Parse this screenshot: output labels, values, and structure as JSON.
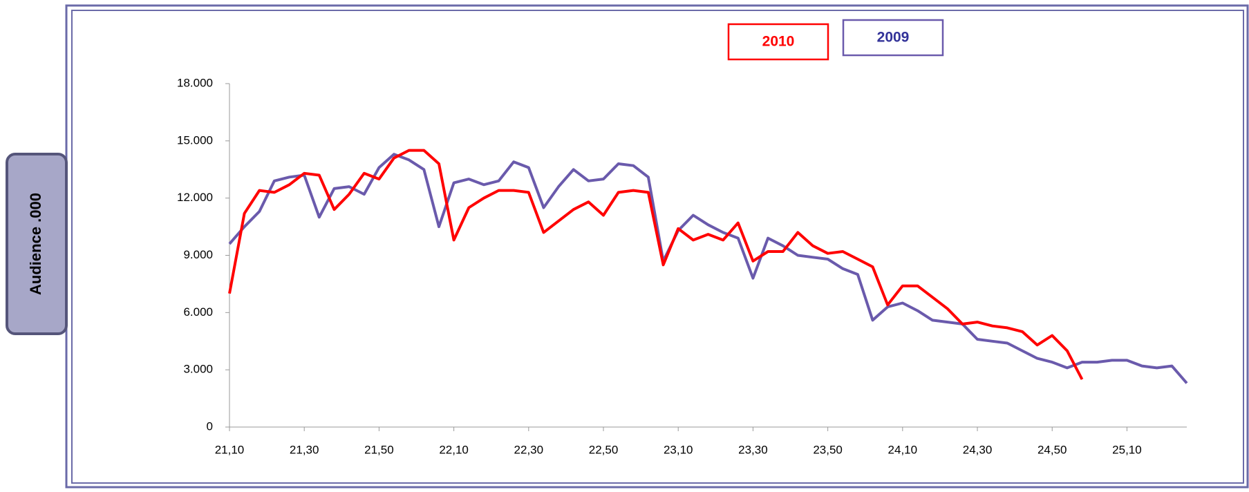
{
  "chart_data": {
    "type": "line",
    "y_label": "Audience .000",
    "x": [
      1270,
      1274,
      1278,
      1282,
      1286,
      1290,
      1294,
      1298,
      1302,
      1306,
      1310,
      1314,
      1318,
      1322,
      1326,
      1330,
      1334,
      1338,
      1342,
      1346,
      1350,
      1354,
      1358,
      1362,
      1366,
      1370,
      1374,
      1378,
      1382,
      1386,
      1390,
      1394,
      1398,
      1402,
      1406,
      1410,
      1414,
      1418,
      1422,
      1426,
      1430,
      1434,
      1438,
      1442,
      1446,
      1450,
      1454,
      1458,
      1462,
      1466,
      1470,
      1474,
      1478,
      1482,
      1486,
      1490,
      1494,
      1498,
      1502,
      1506,
      1510,
      1514,
      1518,
      1522,
      1526
    ],
    "series": [
      {
        "name": "2010",
        "color": "#ff0000",
        "values": [
          7000,
          11200,
          12400,
          12300,
          12700,
          13300,
          13200,
          11400,
          12200,
          13300,
          13000,
          14100,
          14500,
          14500,
          13800,
          9800,
          11500,
          12000,
          12400,
          12400,
          12300,
          10200,
          10800,
          11400,
          11800,
          11100,
          12300,
          12400,
          12300,
          8500,
          10400,
          9800,
          10100,
          9800,
          10700,
          8700,
          9200,
          9200,
          10200,
          9500,
          9100,
          9200,
          8800,
          8400,
          6400,
          7400,
          7400,
          6800,
          6200,
          5400,
          5500,
          5300,
          5200,
          5000,
          4300,
          4800,
          4000,
          2500,
          null,
          null,
          null,
          null,
          null,
          null,
          null
        ]
      },
      {
        "name": "2009",
        "color": "#6a5aac",
        "values": [
          9600,
          10500,
          11300,
          12900,
          13100,
          13200,
          11000,
          12500,
          12600,
          12200,
          13600,
          14300,
          14000,
          13500,
          10500,
          12800,
          13000,
          12700,
          12900,
          13900,
          13600,
          11500,
          12600,
          13500,
          12900,
          13000,
          13800,
          13700,
          13100,
          8700,
          10300,
          11100,
          10600,
          10200,
          9900,
          7800,
          9900,
          9500,
          9000,
          8900,
          8800,
          8300,
          8000,
          5600,
          6300,
          6500,
          6100,
          5600,
          5500,
          5400,
          4600,
          4500,
          4400,
          4000,
          3600,
          3400,
          3100,
          3400,
          3400,
          3500,
          3500,
          3200,
          3100,
          3200,
          2300
        ]
      }
    ],
    "xlim": [
      1270,
      1526
    ],
    "xticks": [
      {
        "value": 1270,
        "label": "21,10"
      },
      {
        "value": 1290,
        "label": "21,30"
      },
      {
        "value": 1310,
        "label": "21,50"
      },
      {
        "value": 1330,
        "label": "22,10"
      },
      {
        "value": 1350,
        "label": "22,30"
      },
      {
        "value": 1370,
        "label": "22,50"
      },
      {
        "value": 1390,
        "label": "23,10"
      },
      {
        "value": 1410,
        "label": "23,30"
      },
      {
        "value": 1430,
        "label": "23,50"
      },
      {
        "value": 1450,
        "label": "24,10"
      },
      {
        "value": 1470,
        "label": "24,30"
      },
      {
        "value": 1490,
        "label": "24,50"
      },
      {
        "value": 1510,
        "label": "25,10"
      }
    ],
    "ylim": [
      0,
      18000
    ],
    "yticks": [
      0,
      {
        "value": 3000,
        "label": "3.000"
      },
      {
        "value": 6000,
        "label": "6.000"
      },
      {
        "value": 9000,
        "label": "9.000"
      },
      {
        "value": 12000,
        "label": "12.000"
      },
      {
        "value": 15000,
        "label": "15.000"
      },
      {
        "value": 18000,
        "label": "18.000"
      }
    ]
  }
}
